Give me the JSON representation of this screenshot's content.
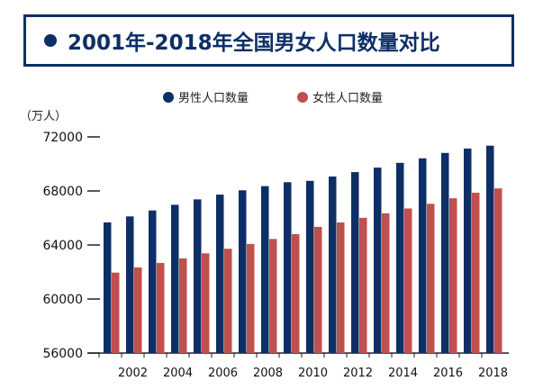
{
  "title": "2001年-2018年全国男女人口数量对比",
  "chart_data": {
    "type": "bar",
    "unit": "（万人）",
    "categories": [
      "2001",
      "2002",
      "2003",
      "2004",
      "2005",
      "2006",
      "2007",
      "2008",
      "2009",
      "2010",
      "2011",
      "2012",
      "2013",
      "2014",
      "2015",
      "2016",
      "2017",
      "2018"
    ],
    "x_tick_labels": [
      "2002",
      "2004",
      "2006",
      "2008",
      "2010",
      "2012",
      "2014",
      "2016",
      "2018"
    ],
    "y_ticks": [
      56000,
      60000,
      64000,
      68000,
      72000
    ],
    "ylim": [
      56000,
      72000
    ],
    "grid": false,
    "legend_position": "top",
    "series": [
      {
        "name": "男性人口数量",
        "color": "#0d2f66",
        "values": [
          65672,
          66115,
          66556,
          66976,
          67375,
          67728,
          68048,
          68357,
          68647,
          68748,
          69068,
          69395,
          69728,
          70079,
          70414,
          70815,
          71137,
          71351
        ]
      },
      {
        "name": "女性人口数量",
        "color": "#c0504d",
        "values": [
          61955,
          62338,
          62671,
          63012,
          63381,
          63720,
          64081,
          64445,
          64803,
          65343,
          65667,
          66009,
          66344,
          66703,
          67048,
          67456,
          67871,
          68187
        ]
      }
    ]
  }
}
